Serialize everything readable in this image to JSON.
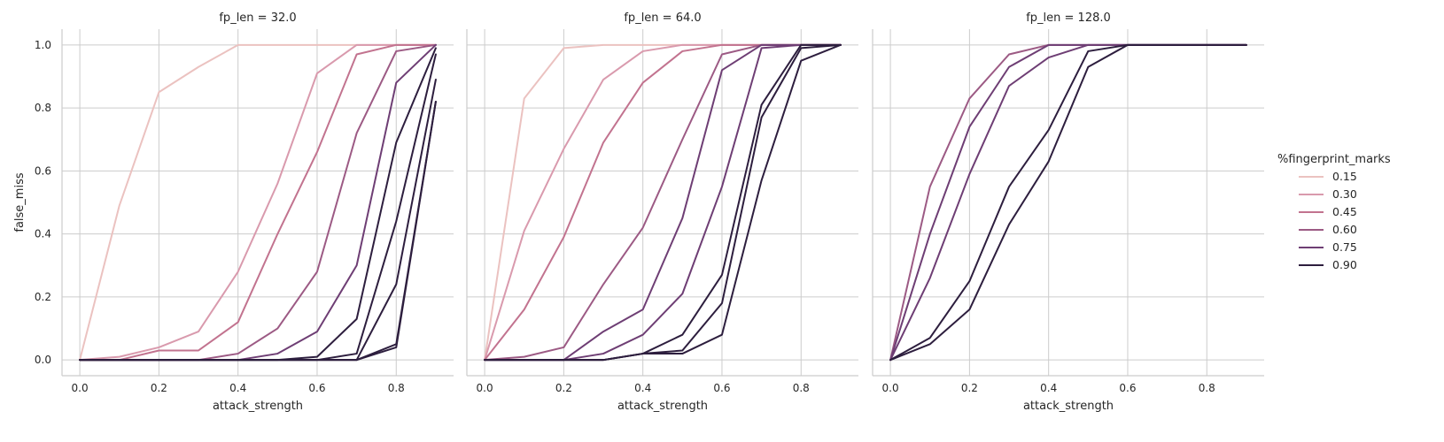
{
  "chart_data": {
    "type": "line",
    "x_label": "attack_strength",
    "y_label": "false_miss",
    "x_ticks": [
      0.0,
      0.2,
      0.4,
      0.6,
      0.8
    ],
    "x_tick_labels": [
      "0.0",
      "0.2",
      "0.4",
      "0.6",
      "0.8"
    ],
    "y_ticks": [
      0.0,
      0.2,
      0.4,
      0.6,
      0.8,
      1.0
    ],
    "y_tick_labels": [
      "0.0",
      "0.2",
      "0.4",
      "0.6",
      "0.8",
      "1.0"
    ],
    "xlim": [
      -0.045,
      0.945
    ],
    "ylim": [
      -0.05,
      1.05
    ],
    "grid": true,
    "legend": {
      "title": "%fingerprint_marks",
      "placement": "right",
      "entries": [
        {
          "label": "0.15",
          "color": "#ebc2c0"
        },
        {
          "label": "0.30",
          "color": "#d99aad"
        },
        {
          "label": "0.45",
          "color": "#c2738f"
        },
        {
          "label": "0.60",
          "color": "#9c5a84"
        },
        {
          "label": "0.75",
          "color": "#6e3e74"
        },
        {
          "label": "0.90",
          "color": "#2d1e3e"
        }
      ]
    },
    "panels": [
      {
        "title": "fp_len = 32.0",
        "series": [
          {
            "key": "0.15",
            "x": [
              0.0,
              0.1,
              0.2,
              0.3,
              0.4,
              0.5,
              0.6,
              0.7,
              0.8,
              0.9
            ],
            "y": [
              0.0,
              0.49,
              0.85,
              0.93,
              1.0,
              1.0,
              1.0,
              1.0,
              1.0,
              1.0
            ]
          },
          {
            "key": "0.30",
            "x": [
              0.0,
              0.1,
              0.2,
              0.3,
              0.4,
              0.5,
              0.6,
              0.7,
              0.8,
              0.9
            ],
            "y": [
              0.0,
              0.01,
              0.04,
              0.09,
              0.28,
              0.56,
              0.91,
              1.0,
              1.0,
              1.0
            ]
          },
          {
            "key": "0.45",
            "x": [
              0.0,
              0.1,
              0.2,
              0.3,
              0.4,
              0.5,
              0.6,
              0.7,
              0.8,
              0.9
            ],
            "y": [
              0.0,
              0.0,
              0.03,
              0.03,
              0.12,
              0.4,
              0.66,
              0.97,
              1.0,
              1.0
            ]
          },
          {
            "key": "0.60",
            "x": [
              0.0,
              0.1,
              0.2,
              0.3,
              0.4,
              0.5,
              0.6,
              0.7,
              0.8,
              0.9
            ],
            "y": [
              0.0,
              0.0,
              0.0,
              0.0,
              0.02,
              0.1,
              0.28,
              0.72,
              0.98,
              1.0
            ]
          },
          {
            "key": "0.75",
            "x": [
              0.0,
              0.1,
              0.2,
              0.3,
              0.4,
              0.5,
              0.6,
              0.7,
              0.8,
              0.9
            ],
            "y": [
              0.0,
              0.0,
              0.0,
              0.0,
              0.0,
              0.02,
              0.09,
              0.3,
              0.88,
              1.0
            ]
          },
          {
            "key": "0.90",
            "x": [
              0.0,
              0.1,
              0.2,
              0.3,
              0.4,
              0.5,
              0.6,
              0.7,
              0.8,
              0.9
            ],
            "y": [
              0.0,
              0.0,
              0.0,
              0.0,
              0.0,
              0.0,
              0.01,
              0.13,
              0.69,
              0.99
            ]
          },
          {
            "key": "0.90",
            "x": [
              0.0,
              0.1,
              0.2,
              0.3,
              0.4,
              0.5,
              0.6,
              0.7,
              0.8,
              0.9
            ],
            "y": [
              0.0,
              0.0,
              0.0,
              0.0,
              0.0,
              0.0,
              0.0,
              0.02,
              0.44,
              0.97
            ]
          },
          {
            "key": "0.90",
            "x": [
              0.0,
              0.1,
              0.2,
              0.3,
              0.4,
              0.5,
              0.6,
              0.7,
              0.8,
              0.9
            ],
            "y": [
              0.0,
              0.0,
              0.0,
              0.0,
              0.0,
              0.0,
              0.0,
              0.0,
              0.24,
              0.89
            ]
          },
          {
            "key": "0.90",
            "x": [
              0.0,
              0.1,
              0.2,
              0.3,
              0.4,
              0.5,
              0.6,
              0.7,
              0.8,
              0.9
            ],
            "y": [
              0.0,
              0.0,
              0.0,
              0.0,
              0.0,
              0.0,
              0.0,
              0.0,
              0.05,
              0.82
            ]
          },
          {
            "key": "0.90",
            "x": [
              0.0,
              0.1,
              0.2,
              0.3,
              0.4,
              0.5,
              0.6,
              0.7,
              0.8,
              0.9
            ],
            "y": [
              0.0,
              0.0,
              0.0,
              0.0,
              0.0,
              0.0,
              0.0,
              0.0,
              0.04,
              0.82
            ]
          }
        ]
      },
      {
        "title": "fp_len = 64.0",
        "series": [
          {
            "key": "0.15",
            "x": [
              0.0,
              0.1,
              0.2,
              0.3,
              0.4,
              0.5,
              0.6,
              0.7,
              0.8,
              0.9
            ],
            "y": [
              0.0,
              0.83,
              0.99,
              1.0,
              1.0,
              1.0,
              1.0,
              1.0,
              1.0,
              1.0
            ]
          },
          {
            "key": "0.30",
            "x": [
              0.0,
              0.1,
              0.2,
              0.3,
              0.4,
              0.5,
              0.6,
              0.7,
              0.8,
              0.9
            ],
            "y": [
              0.0,
              0.41,
              0.67,
              0.89,
              0.98,
              1.0,
              1.0,
              1.0,
              1.0,
              1.0
            ]
          },
          {
            "key": "0.45",
            "x": [
              0.0,
              0.1,
              0.2,
              0.3,
              0.4,
              0.5,
              0.6,
              0.7,
              0.8,
              0.9
            ],
            "y": [
              0.0,
              0.16,
              0.39,
              0.69,
              0.88,
              0.98,
              1.0,
              1.0,
              1.0,
              1.0
            ]
          },
          {
            "key": "0.60",
            "x": [
              0.0,
              0.1,
              0.2,
              0.3,
              0.4,
              0.5,
              0.6,
              0.7,
              0.8,
              0.9
            ],
            "y": [
              0.0,
              0.01,
              0.04,
              0.24,
              0.42,
              0.7,
              0.97,
              1.0,
              1.0,
              1.0
            ]
          },
          {
            "key": "0.75",
            "x": [
              0.0,
              0.1,
              0.2,
              0.3,
              0.4,
              0.5,
              0.6,
              0.7,
              0.8,
              0.9
            ],
            "y": [
              0.0,
              0.0,
              0.0,
              0.09,
              0.16,
              0.45,
              0.92,
              1.0,
              1.0,
              1.0
            ]
          },
          {
            "key": "0.75",
            "x": [
              0.0,
              0.1,
              0.2,
              0.3,
              0.4,
              0.5,
              0.6,
              0.7,
              0.8,
              0.9
            ],
            "y": [
              0.0,
              0.0,
              0.0,
              0.02,
              0.08,
              0.21,
              0.55,
              0.99,
              1.0,
              1.0
            ]
          },
          {
            "key": "0.90",
            "x": [
              0.0,
              0.1,
              0.2,
              0.3,
              0.4,
              0.5,
              0.6,
              0.7,
              0.8,
              0.9
            ],
            "y": [
              0.0,
              0.0,
              0.0,
              0.0,
              0.02,
              0.08,
              0.27,
              0.81,
              1.0,
              1.0
            ]
          },
          {
            "key": "0.90",
            "x": [
              0.0,
              0.1,
              0.2,
              0.3,
              0.4,
              0.5,
              0.6,
              0.7,
              0.8,
              0.9
            ],
            "y": [
              0.0,
              0.0,
              0.0,
              0.0,
              0.02,
              0.03,
              0.18,
              0.77,
              0.99,
              1.0
            ]
          },
          {
            "key": "0.90",
            "x": [
              0.0,
              0.1,
              0.2,
              0.3,
              0.4,
              0.5,
              0.6,
              0.7,
              0.8,
              0.9
            ],
            "y": [
              0.0,
              0.0,
              0.0,
              0.0,
              0.02,
              0.02,
              0.08,
              0.57,
              0.95,
              1.0
            ]
          }
        ]
      },
      {
        "title": "fp_len = 128.0",
        "series": [
          {
            "key": "0.60",
            "x": [
              0.0,
              0.1,
              0.2,
              0.3,
              0.4,
              0.5,
              0.6,
              0.7,
              0.8,
              0.9
            ],
            "y": [
              0.0,
              0.55,
              0.83,
              0.97,
              1.0,
              1.0,
              1.0,
              1.0,
              1.0,
              1.0
            ]
          },
          {
            "key": "0.75",
            "x": [
              0.0,
              0.1,
              0.2,
              0.3,
              0.4,
              0.5,
              0.6,
              0.7,
              0.8,
              0.9
            ],
            "y": [
              0.0,
              0.4,
              0.74,
              0.93,
              1.0,
              1.0,
              1.0,
              1.0,
              1.0,
              1.0
            ]
          },
          {
            "key": "0.75",
            "x": [
              0.0,
              0.1,
              0.2,
              0.3,
              0.4,
              0.5,
              0.6,
              0.7,
              0.8,
              0.9
            ],
            "y": [
              0.0,
              0.26,
              0.59,
              0.87,
              0.96,
              1.0,
              1.0,
              1.0,
              1.0,
              1.0
            ]
          },
          {
            "key": "0.90",
            "x": [
              0.0,
              0.1,
              0.2,
              0.3,
              0.4,
              0.5,
              0.6,
              0.7,
              0.8,
              0.9
            ],
            "y": [
              0.0,
              0.07,
              0.25,
              0.55,
              0.73,
              0.98,
              1.0,
              1.0,
              1.0,
              1.0
            ]
          },
          {
            "key": "0.90",
            "x": [
              0.0,
              0.1,
              0.2,
              0.3,
              0.4,
              0.5,
              0.6,
              0.7,
              0.8,
              0.9
            ],
            "y": [
              0.0,
              0.05,
              0.16,
              0.43,
              0.63,
              0.93,
              1.0,
              1.0,
              1.0,
              1.0
            ]
          }
        ]
      }
    ]
  }
}
